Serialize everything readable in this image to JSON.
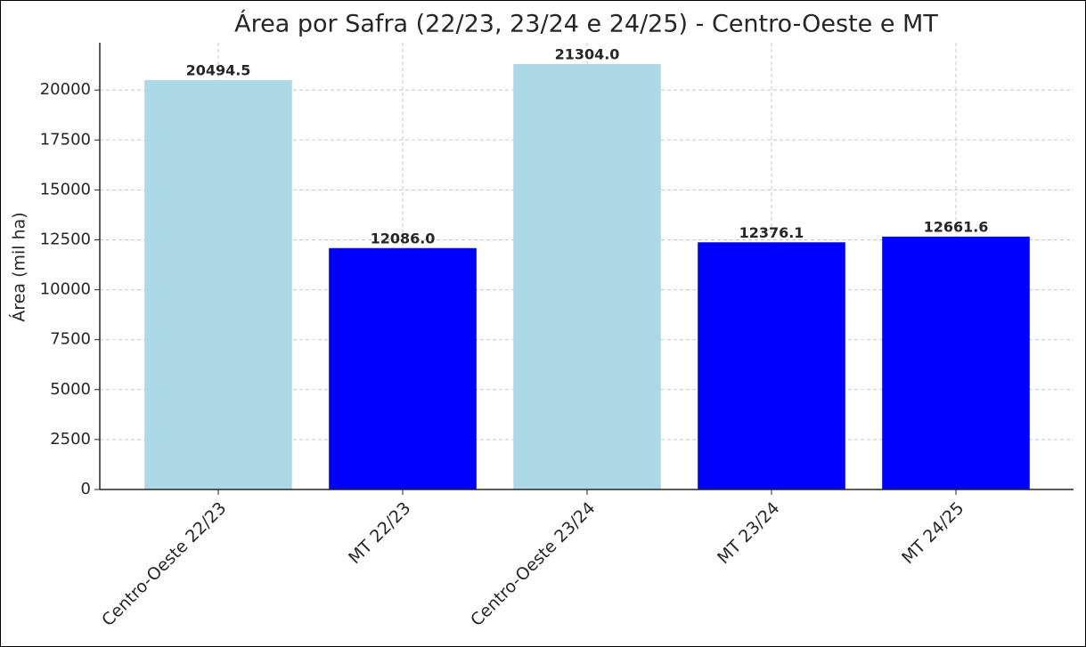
{
  "chart_data": {
    "type": "bar",
    "title": "Área por Safra (22/23, 23/24 e 24/25) - Centro-Oeste e MT",
    "y_label": "Área (mil ha)",
    "categories": [
      "Centro-Oeste 22/23",
      "MT 22/23",
      "Centro-Oeste 23/24",
      "MT 23/24",
      "MT 24/25"
    ],
    "values": [
      20494.5,
      12086,
      21304,
      12376.1,
      12661.6
    ],
    "value_labels": [
      "20494.5",
      "12086.0",
      "21304.0",
      "12376.1",
      "12661.6"
    ],
    "colors": [
      "#add8e6",
      "#0000ff",
      "#add8e6",
      "#0000ff",
      "#0000ff"
    ],
    "ylim": [
      0,
      22370
    ],
    "yticks": [
      0,
      2500,
      5000,
      7500,
      10000,
      12500,
      15000,
      17500,
      20000
    ],
    "grid": true
  }
}
